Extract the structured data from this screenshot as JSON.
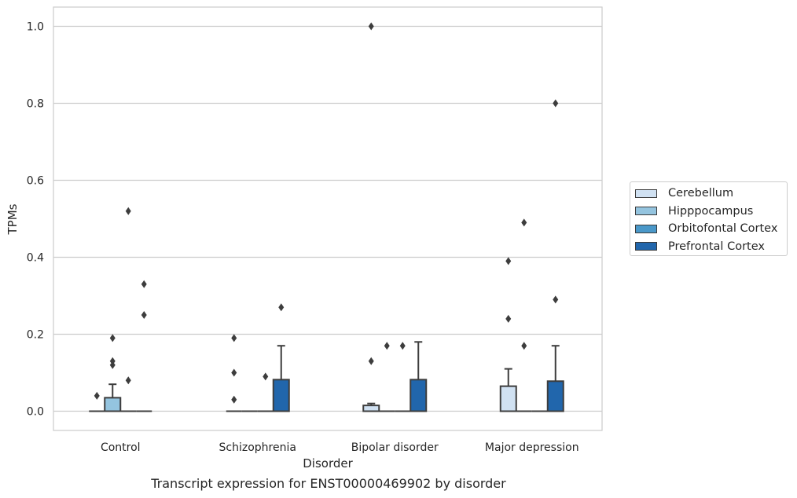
{
  "chart_data": {
    "type": "box",
    "caption": "Transcript expression for ENST00000469902 by disorder",
    "xlabel": "Disorder",
    "ylabel": "TPMs",
    "ylim": [
      -0.05,
      1.05
    ],
    "yticks": [
      "0.0",
      "0.2",
      "0.4",
      "0.6",
      "0.8",
      "1.0"
    ],
    "grid": "y",
    "legend_position": "right",
    "categories": [
      "Control",
      "Schizophrenia",
      "Bipolar disorder",
      "Major depression"
    ],
    "series": [
      {
        "name": "Cerebellum",
        "color": "#d0e1f2",
        "boxes": [
          {
            "q1": 0,
            "median": 0,
            "q3": 0,
            "whislo": 0,
            "whishi": 0,
            "fliers": [
              0.04
            ]
          },
          {
            "q1": 0,
            "median": 0,
            "q3": 0,
            "whislo": 0,
            "whishi": 0,
            "fliers": [
              0.03,
              0.1,
              0.19
            ]
          },
          {
            "q1": 0,
            "median": 0,
            "q3": 0.015,
            "whislo": 0,
            "whishi": 0.02,
            "fliers": [
              0.13,
              1.0
            ]
          },
          {
            "q1": 0,
            "median": 0,
            "q3": 0.065,
            "whislo": 0,
            "whishi": 0.11,
            "fliers": [
              0.24,
              0.39
            ]
          }
        ]
      },
      {
        "name": "Hipppocampus",
        "color": "#94c4df",
        "boxes": [
          {
            "q1": 0,
            "median": 0,
            "q3": 0.035,
            "whislo": 0,
            "whishi": 0.07,
            "fliers": [
              0.12,
              0.13,
              0.19
            ]
          },
          {
            "q1": 0,
            "median": 0,
            "q3": 0,
            "whislo": 0,
            "whishi": 0,
            "fliers": []
          },
          {
            "q1": 0,
            "median": 0,
            "q3": 0,
            "whislo": 0,
            "whishi": 0,
            "fliers": [
              0.17
            ]
          },
          {
            "q1": 0,
            "median": 0,
            "q3": 0,
            "whislo": 0,
            "whishi": 0,
            "fliers": [
              0.17,
              0.49
            ]
          }
        ]
      },
      {
        "name": "Orbitofontal Cortex",
        "color": "#4a98c9",
        "boxes": [
          {
            "q1": 0,
            "median": 0,
            "q3": 0,
            "whislo": 0,
            "whishi": 0,
            "fliers": [
              0.08,
              0.52
            ]
          },
          {
            "q1": 0,
            "median": 0,
            "q3": 0,
            "whislo": 0,
            "whishi": 0,
            "fliers": [
              0.09
            ]
          },
          {
            "q1": 0,
            "median": 0,
            "q3": 0,
            "whislo": 0,
            "whishi": 0,
            "fliers": [
              0.17
            ]
          },
          {
            "q1": 0,
            "median": 0,
            "q3": 0,
            "whislo": 0,
            "whishi": 0,
            "fliers": []
          }
        ]
      },
      {
        "name": "Prefrontal Cortex",
        "color": "#2166ac",
        "boxes": [
          {
            "q1": 0,
            "median": 0,
            "q3": 0,
            "whislo": 0,
            "whishi": 0,
            "fliers": [
              0.25,
              0.33
            ]
          },
          {
            "q1": 0,
            "median": 0,
            "q3": 0.082,
            "whislo": 0,
            "whishi": 0.17,
            "fliers": [
              0.27
            ]
          },
          {
            "q1": 0,
            "median": 0,
            "q3": 0.082,
            "whislo": 0,
            "whishi": 0.18,
            "fliers": []
          },
          {
            "q1": 0,
            "median": 0,
            "q3": 0.078,
            "whislo": 0,
            "whishi": 0.17,
            "fliers": [
              0.29,
              0.8
            ]
          }
        ]
      }
    ]
  }
}
